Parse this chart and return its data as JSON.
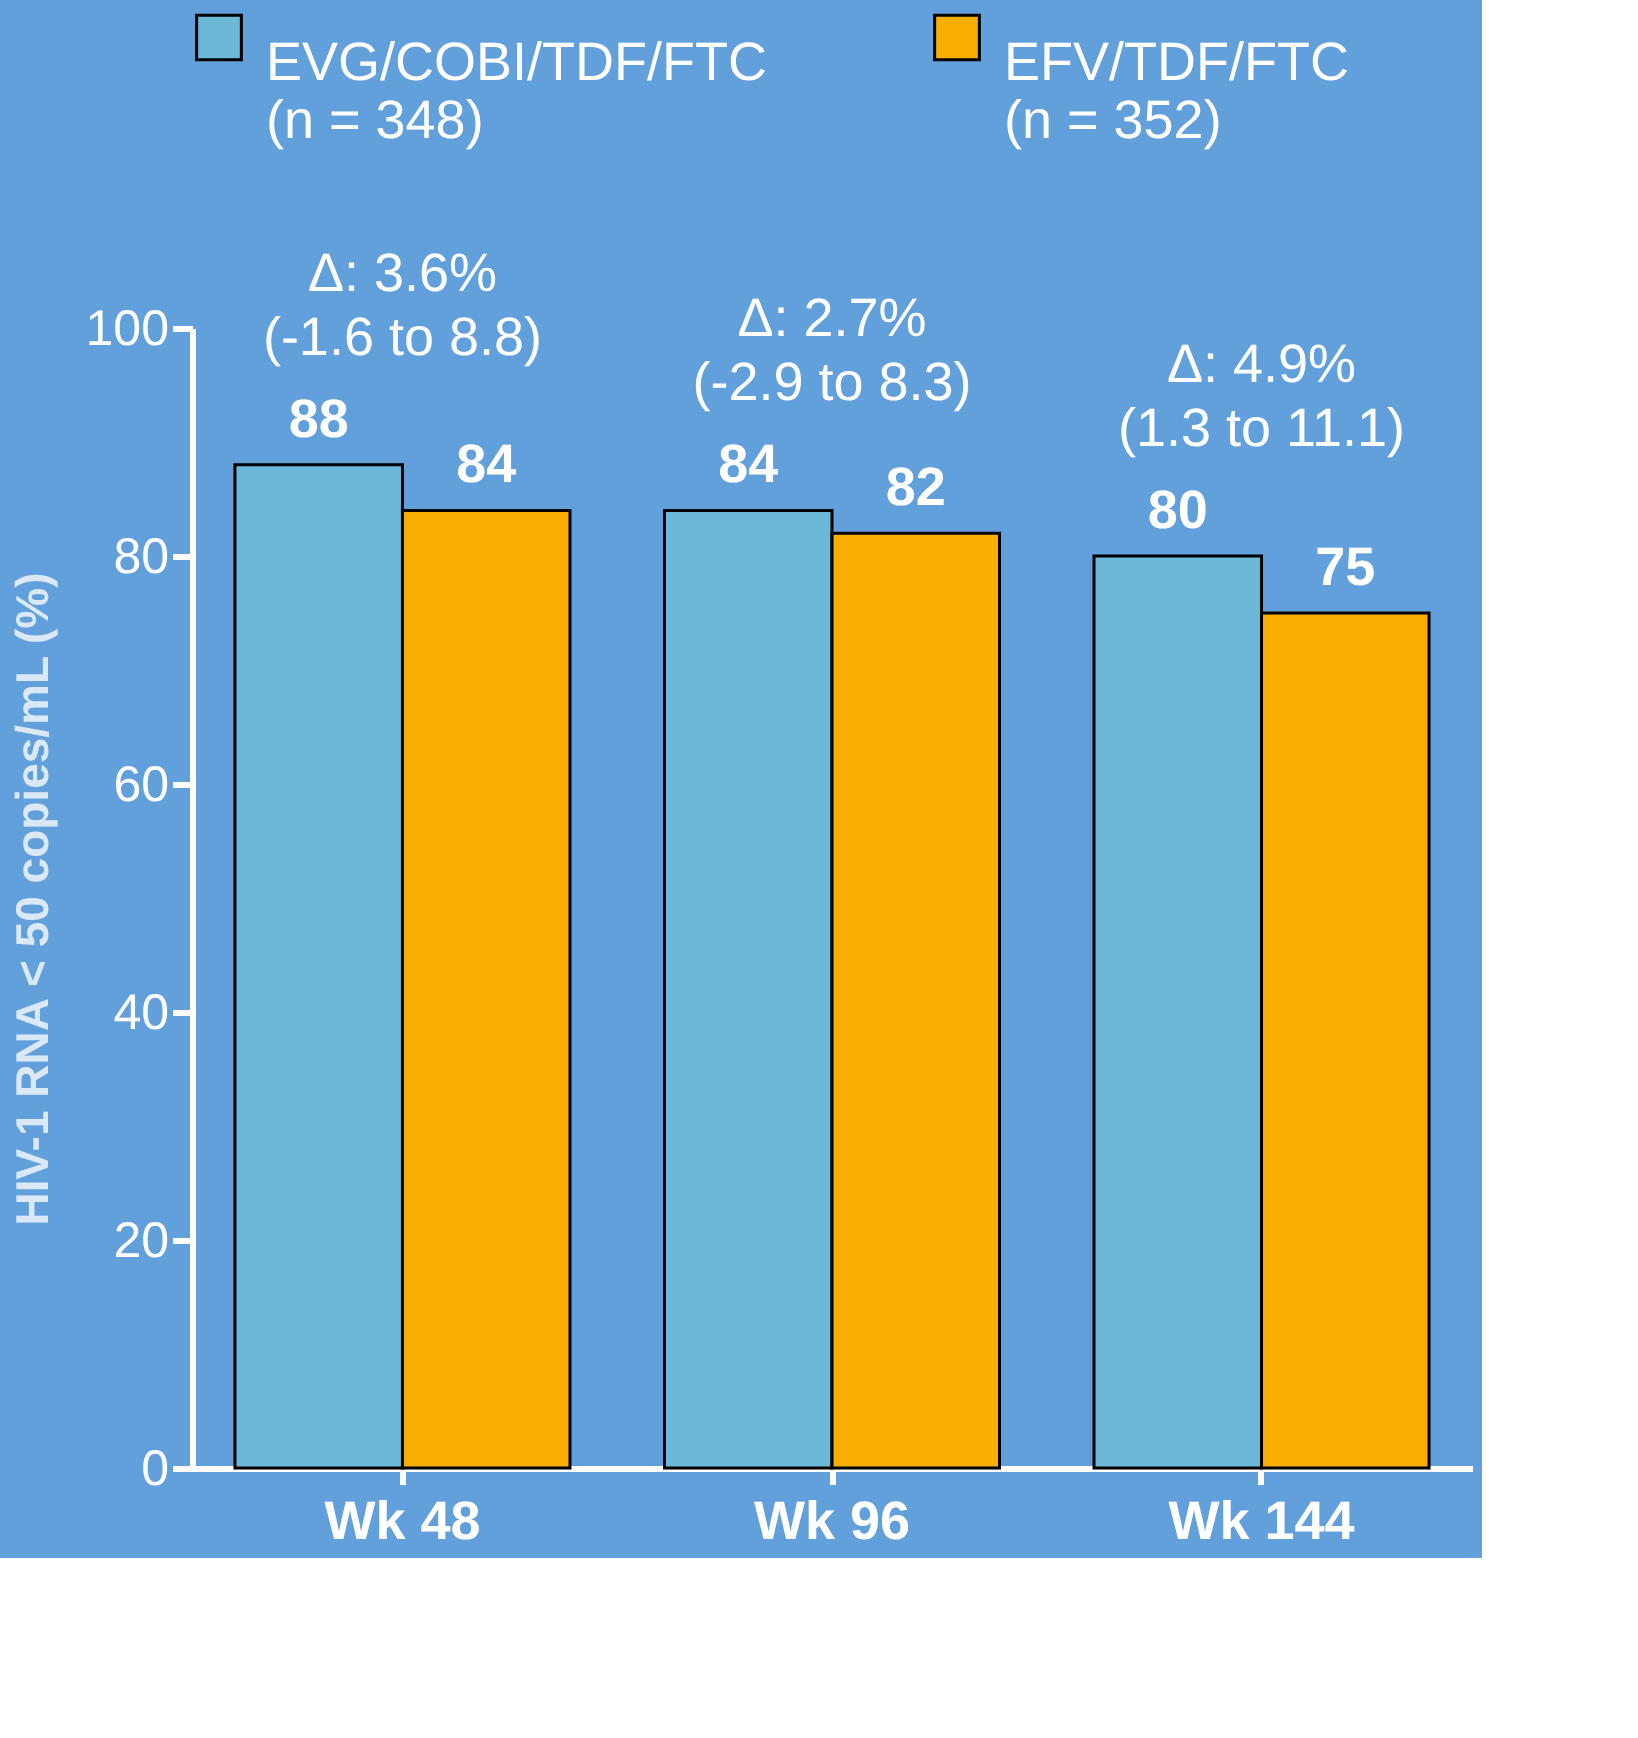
{
  "chart_data": {
    "type": "bar",
    "ylabel": "HIV-1 RNA < 50 copies/mL (%)",
    "categories": [
      "Wk 48",
      "Wk 96",
      "Wk 144"
    ],
    "series": [
      {
        "name": "EVG/COBI/TDF/FTC\n(n = 348)",
        "color": "#6bb8d8",
        "values": [
          88,
          84,
          80
        ]
      },
      {
        "name": "EFV/TDF/FTC\n(n = 352)",
        "color": "#f8ae00",
        "values": [
          84,
          82,
          75
        ]
      }
    ],
    "annotations": [
      "Δ: 3.6%\n(-1.6 to 8.8)",
      "Δ: 2.7%\n(-2.9 to 8.3)",
      "Δ: 4.9%\n(1.3 to 11.1)"
    ],
    "ylim": [
      0,
      100
    ],
    "yticks": [
      0,
      20,
      40,
      60,
      80,
      100
    ],
    "data_labels": true,
    "legend": "top",
    "grid": false
  }
}
